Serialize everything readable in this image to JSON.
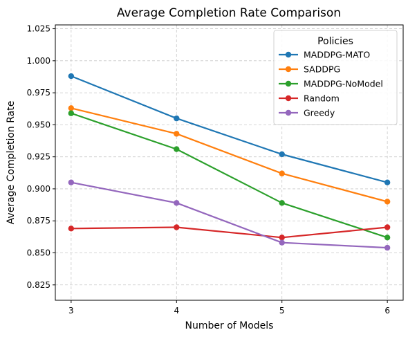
{
  "chart_data": {
    "type": "line",
    "title": "Average Completion Rate Comparison",
    "xlabel": "Number of Models",
    "ylabel": "Average Completion Rate",
    "x": [
      3,
      4,
      5,
      6
    ],
    "xticks": [
      "3",
      "4",
      "5",
      "6"
    ],
    "yticks": [
      "0.825",
      "0.850",
      "0.875",
      "0.900",
      "0.925",
      "0.950",
      "0.975",
      "1.000",
      "1.025"
    ],
    "ylim": [
      0.813,
      1.028
    ],
    "xlim": [
      2.85,
      6.15
    ],
    "grid": true,
    "legend": {
      "title": "Policies",
      "placement": "top-right"
    },
    "series": [
      {
        "name": "MADDPG-MATO",
        "color": "#1f77b4",
        "values": [
          0.988,
          0.955,
          0.927,
          0.905
        ]
      },
      {
        "name": "SADDPG",
        "color": "#ff7f0e",
        "values": [
          0.963,
          0.943,
          0.912,
          0.89
        ]
      },
      {
        "name": "MADDPG-NoModel",
        "color": "#2ca02c",
        "values": [
          0.959,
          0.931,
          0.889,
          0.862
        ]
      },
      {
        "name": "Random",
        "color": "#d62728",
        "values": [
          0.869,
          0.87,
          0.862,
          0.87
        ]
      },
      {
        "name": "Greedy",
        "color": "#9467bd",
        "values": [
          0.905,
          0.889,
          0.858,
          0.854
        ]
      }
    ]
  }
}
